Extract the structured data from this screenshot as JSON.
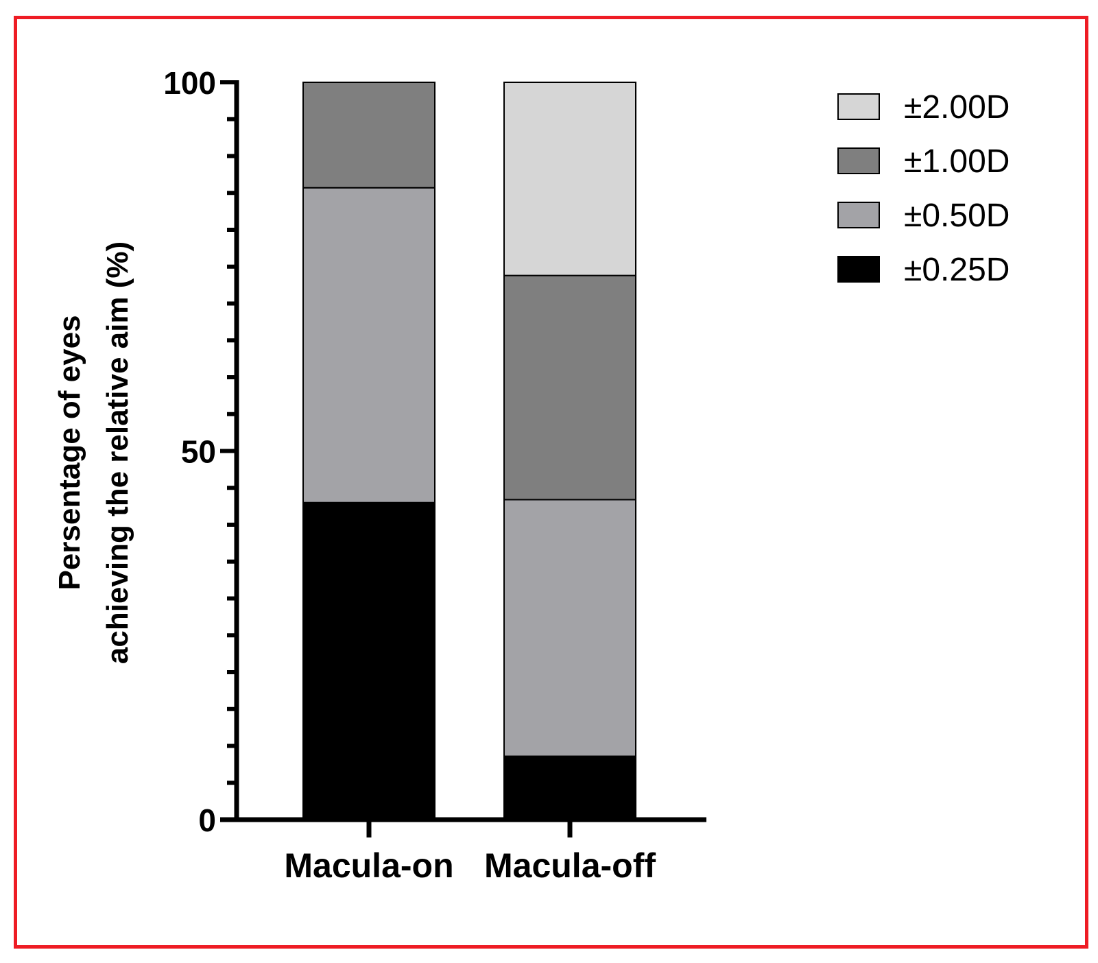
{
  "chart_data": {
    "type": "bar",
    "stacked": true,
    "ylabel": [
      "Persentage of eyes",
      "achieving the relative aim (%)"
    ],
    "ylim": [
      0,
      100
    ],
    "yticks": [
      0,
      50,
      100
    ],
    "categories": [
      "Macula-on",
      "Macula-off"
    ],
    "series": [
      {
        "name": "±0.25D",
        "color": "#000000",
        "values": [
          43,
          8.6
        ]
      },
      {
        "name": "±0.50D",
        "color": "#a3a3a7",
        "values": [
          42.7,
          34.8
        ]
      },
      {
        "name": "±1.00D",
        "color": "#7f7f7f",
        "values": [
          14.3,
          30.4
        ]
      },
      {
        "name": "±2.00D",
        "color": "#d6d6d6",
        "values": [
          0,
          26.2
        ]
      }
    ],
    "legend": {
      "position": "top-right",
      "order": [
        "±2.00D",
        "±1.00D",
        "±0.50D",
        "±0.25D"
      ]
    },
    "grid": false
  }
}
